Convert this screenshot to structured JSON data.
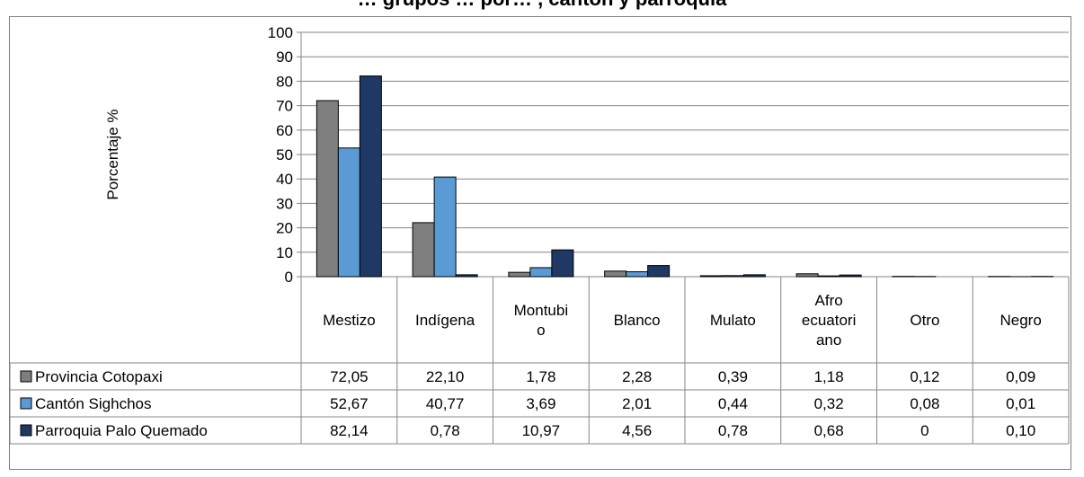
{
  "chart_data": {
    "type": "bar",
    "title": "… grupos … por… , cantón y parroquia",
    "ylabel": "Porcentaje %",
    "ylim": [
      0,
      100
    ],
    "yticks": [
      0,
      10,
      20,
      30,
      40,
      50,
      60,
      70,
      80,
      90,
      100
    ],
    "grid": true,
    "categories": [
      [
        "Mestizo"
      ],
      [
        "Indígena"
      ],
      [
        "Montubi",
        "o"
      ],
      [
        "Blanco"
      ],
      [
        "Mulato"
      ],
      [
        "Afro",
        "ecuatori",
        "ano"
      ],
      [
        "Otro"
      ],
      [
        "Negro"
      ]
    ],
    "series": [
      {
        "name": "Provincia Cotopaxi",
        "color": "#7f7f7f",
        "values": [
          72.05,
          22.1,
          1.78,
          2.28,
          0.39,
          1.18,
          0.12,
          0.09
        ],
        "labels": [
          "72,05",
          "22,10",
          "1,78",
          "2,28",
          "0,39",
          "1,18",
          "0,12",
          "0,09"
        ]
      },
      {
        "name": "Cantón Sighchos",
        "color": "#5b9bd5",
        "values": [
          52.67,
          40.77,
          3.69,
          2.01,
          0.44,
          0.32,
          0.08,
          0.01
        ],
        "labels": [
          "52,67",
          "40,77",
          "3,69",
          "2,01",
          "0,44",
          "0,32",
          "0,08",
          "0,01"
        ]
      },
      {
        "name": "Parroquia Palo Quemado",
        "color": "#1f3864",
        "values": [
          82.14,
          0.78,
          10.97,
          4.56,
          0.78,
          0.68,
          0,
          0.1
        ],
        "labels": [
          "82,14",
          "0,78",
          "10,97",
          "4,56",
          "0,78",
          "0,68",
          "0",
          "0,10"
        ]
      }
    ]
  }
}
